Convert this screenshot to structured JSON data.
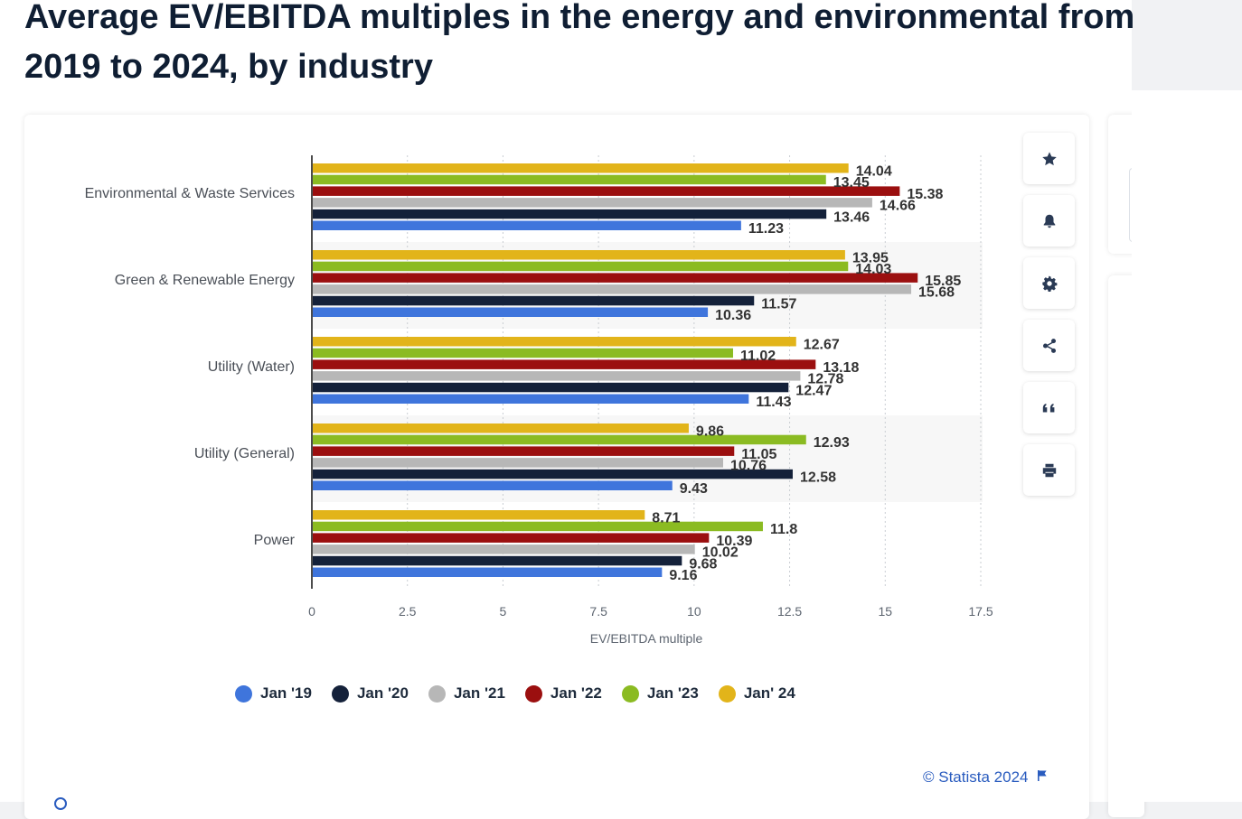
{
  "page": {
    "title": "Average EV/EBITDA multiples in the energy and environmental from 2019 to 2024, by industry"
  },
  "toolbar": [
    {
      "name": "favorite-button",
      "icon": "star-icon"
    },
    {
      "name": "notification-button",
      "icon": "bell-icon"
    },
    {
      "name": "settings-button",
      "icon": "gear-icon"
    },
    {
      "name": "share-button",
      "icon": "share-icon"
    },
    {
      "name": "cite-button",
      "icon": "quote-icon"
    },
    {
      "name": "print-button",
      "icon": "printer-icon"
    }
  ],
  "credit": {
    "text": "© Statista 2024",
    "icon": "flag-icon"
  },
  "chart_data": {
    "type": "bar",
    "orientation": "horizontal",
    "categories": [
      "Environmental & Waste Services",
      "Green & Renewable Energy",
      "Utility (Water)",
      "Utility (General)",
      "Power"
    ],
    "series": [
      {
        "name": "Jan '19",
        "color": "#3f75dc",
        "values": [
          11.23,
          10.36,
          11.43,
          9.43,
          9.16
        ]
      },
      {
        "name": "Jan '20",
        "color": "#14213a",
        "values": [
          13.46,
          11.57,
          12.47,
          12.58,
          9.68
        ]
      },
      {
        "name": "Jan '21",
        "color": "#b7b7b7",
        "values": [
          14.66,
          15.68,
          12.78,
          10.76,
          10.02
        ]
      },
      {
        "name": "Jan '22",
        "color": "#9b0f0f",
        "values": [
          15.38,
          15.85,
          13.18,
          11.05,
          10.39
        ]
      },
      {
        "name": "Jan '23",
        "color": "#8bbb22",
        "values": [
          13.45,
          14.03,
          11.02,
          12.93,
          11.8
        ]
      },
      {
        "name": "Jan' 24",
        "color": "#e2b41a",
        "values": [
          14.04,
          13.95,
          12.67,
          9.86,
          8.71
        ]
      }
    ],
    "xlabel": "EV/EBITDA multiple",
    "ylabel": "",
    "xlim": [
      0,
      17.5
    ],
    "xticks": [
      "0",
      "2.5",
      "5",
      "7.5",
      "10",
      "12.5",
      "15",
      "17.5"
    ],
    "grid": true,
    "legend_position": "bottom"
  }
}
